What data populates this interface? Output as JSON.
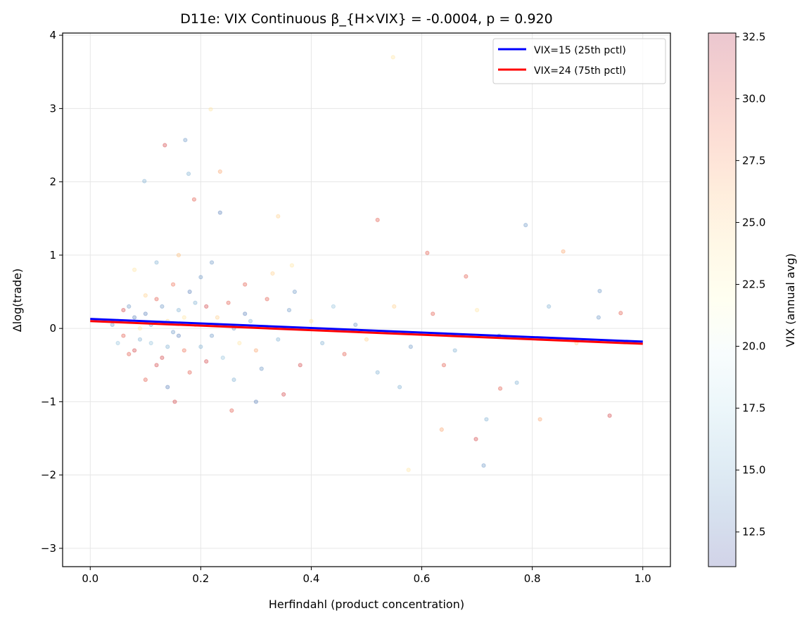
{
  "chart_data": {
    "type": "scatter",
    "title": "D11e: VIX Continuous β_{H×VIX} = -0.0004, p = 0.920",
    "xlabel": "Herfindahl (product concentration)",
    "ylabel": "Δlog(trade)",
    "xlim": [
      -0.05,
      1.05
    ],
    "ylim": [
      -3.25,
      4.03
    ],
    "xticks": [
      "0.0",
      "0.2",
      "0.4",
      "0.6",
      "0.8",
      "1.0"
    ],
    "xtick_values": [
      0,
      0.2,
      0.4,
      0.6,
      0.8,
      1.0
    ],
    "yticks": [
      "−3",
      "−2",
      "−1",
      "0",
      "1",
      "2",
      "3",
      "4"
    ],
    "ytick_values": [
      -3,
      -2,
      -1,
      0,
      1,
      2,
      3,
      4
    ],
    "grid": true,
    "legend_position": "top-right",
    "colorbar": {
      "label": "VIX (annual avg)",
      "colormap": "RdYlBu_r",
      "range": [
        11.1,
        32.65
      ],
      "ticks": [
        "12.5",
        "15.0",
        "17.5",
        "20.0",
        "22.5",
        "25.0",
        "27.5",
        "30.0",
        "32.5"
      ],
      "tick_values": [
        12.5,
        15,
        17.5,
        20,
        22.5,
        25,
        27.5,
        30,
        32.5
      ]
    },
    "lines": [
      {
        "name": "VIX=15 (25th pctl)",
        "color": "#0000ff",
        "x": [
          0,
          1
        ],
        "y": [
          0.13,
          -0.18
        ]
      },
      {
        "name": "VIX=24 (75th pctl)",
        "color": "#ff0000",
        "x": [
          0,
          1
        ],
        "y": [
          0.1,
          -0.21
        ]
      }
    ],
    "points_note_columns": [
      "herfindahl",
      "dlog_trade",
      "vix"
    ],
    "points": [
      [
        0.548,
        3.7,
        24
      ],
      [
        0.218,
        2.99,
        24
      ],
      [
        0.235,
        2.14,
        27
      ],
      [
        0.135,
        2.5,
        31
      ],
      [
        0.172,
        2.57,
        14
      ],
      [
        0.098,
        2.01,
        15
      ],
      [
        0.178,
        2.11,
        15
      ],
      [
        0.188,
        1.76,
        30
      ],
      [
        0.235,
        1.58,
        13
      ],
      [
        0.34,
        1.53,
        25
      ],
      [
        0.52,
        1.48,
        30
      ],
      [
        0.788,
        1.41,
        14
      ],
      [
        0.61,
        1.03,
        30
      ],
      [
        0.856,
        1.05,
        27
      ],
      [
        0.365,
        0.86,
        24
      ],
      [
        0.68,
        0.71,
        30
      ],
      [
        0.96,
        0.21,
        30
      ],
      [
        0.922,
        0.51,
        14
      ],
      [
        0.94,
        -1.19,
        31
      ],
      [
        0.814,
        -1.24,
        27
      ],
      [
        0.772,
        -0.74,
        15
      ],
      [
        0.712,
        -1.87,
        14
      ],
      [
        0.698,
        -1.51,
        31
      ],
      [
        0.636,
        -1.38,
        27
      ],
      [
        0.576,
        -1.93,
        24
      ],
      [
        0.3,
        -1.0,
        13
      ],
      [
        0.256,
        -1.12,
        30
      ],
      [
        0.153,
        -1.0,
        31
      ],
      [
        0.742,
        -0.82,
        30
      ],
      [
        0.717,
        -1.24,
        15
      ],
      [
        0.05,
        0.1,
        15
      ],
      [
        0.06,
        -0.1,
        30
      ],
      [
        0.07,
        0.3,
        14
      ],
      [
        0.08,
        -0.3,
        31
      ],
      [
        0.09,
        0.0,
        24
      ],
      [
        0.1,
        0.2,
        13
      ],
      [
        0.11,
        -0.2,
        16
      ],
      [
        0.12,
        0.4,
        30
      ],
      [
        0.13,
        -0.4,
        31
      ],
      [
        0.14,
        0.1,
        25
      ],
      [
        0.15,
        -0.05,
        14
      ],
      [
        0.16,
        0.25,
        15
      ],
      [
        0.17,
        -0.3,
        29
      ],
      [
        0.18,
        0.5,
        13
      ],
      [
        0.19,
        0.05,
        26
      ],
      [
        0.2,
        -0.25,
        15
      ],
      [
        0.21,
        0.3,
        31
      ],
      [
        0.22,
        -0.1,
        14
      ],
      [
        0.23,
        0.15,
        25
      ],
      [
        0.24,
        -0.4,
        16
      ],
      [
        0.25,
        0.35,
        30
      ],
      [
        0.26,
        0.0,
        14
      ],
      [
        0.27,
        -0.2,
        24
      ],
      [
        0.28,
        0.2,
        13
      ],
      [
        0.29,
        0.1,
        15
      ],
      [
        0.3,
        -0.3,
        27
      ],
      [
        0.32,
        0.4,
        30
      ],
      [
        0.34,
        -0.15,
        15
      ],
      [
        0.36,
        0.25,
        14
      ],
      [
        0.38,
        -0.5,
        31
      ],
      [
        0.4,
        0.1,
        24
      ],
      [
        0.42,
        -0.2,
        15
      ],
      [
        0.44,
        0.3,
        16
      ],
      [
        0.46,
        -0.35,
        30
      ],
      [
        0.48,
        0.05,
        14
      ],
      [
        0.5,
        -0.15,
        25
      ],
      [
        0.04,
        0.05,
        14
      ],
      [
        0.05,
        -0.2,
        16
      ],
      [
        0.06,
        0.25,
        31
      ],
      [
        0.07,
        -0.35,
        30
      ],
      [
        0.08,
        0.15,
        13
      ],
      [
        0.09,
        -0.15,
        15
      ],
      [
        0.1,
        0.45,
        25
      ],
      [
        0.11,
        0.05,
        14
      ],
      [
        0.12,
        -0.5,
        31
      ],
      [
        0.13,
        0.3,
        14
      ],
      [
        0.14,
        -0.25,
        15
      ],
      [
        0.15,
        0.6,
        29
      ],
      [
        0.16,
        -0.1,
        13
      ],
      [
        0.17,
        0.15,
        24
      ],
      [
        0.18,
        -0.6,
        30
      ],
      [
        0.19,
        0.35,
        15
      ],
      [
        0.2,
        0.7,
        14
      ],
      [
        0.21,
        -0.45,
        31
      ],
      [
        0.08,
        0.8,
        24
      ],
      [
        0.1,
        -0.7,
        30
      ],
      [
        0.12,
        0.9,
        15
      ],
      [
        0.14,
        -0.8,
        13
      ],
      [
        0.16,
        1.0,
        26
      ],
      [
        0.22,
        0.9,
        14
      ],
      [
        0.26,
        -0.7,
        15
      ],
      [
        0.28,
        0.6,
        30
      ],
      [
        0.31,
        -0.55,
        14
      ],
      [
        0.33,
        0.75,
        25
      ],
      [
        0.35,
        -0.9,
        31
      ],
      [
        0.37,
        0.5,
        14
      ],
      [
        0.52,
        -0.6,
        15
      ],
      [
        0.55,
        0.3,
        25
      ],
      [
        0.58,
        -0.25,
        14
      ],
      [
        0.62,
        0.2,
        30
      ],
      [
        0.66,
        -0.3,
        15
      ],
      [
        0.7,
        0.25,
        24
      ],
      [
        0.74,
        -0.1,
        13
      ],
      [
        0.83,
        0.3,
        15
      ],
      [
        0.88,
        -0.2,
        25
      ],
      [
        0.92,
        0.15,
        14
      ],
      [
        0.56,
        -0.8,
        15
      ],
      [
        0.64,
        -0.5,
        30
      ]
    ]
  }
}
